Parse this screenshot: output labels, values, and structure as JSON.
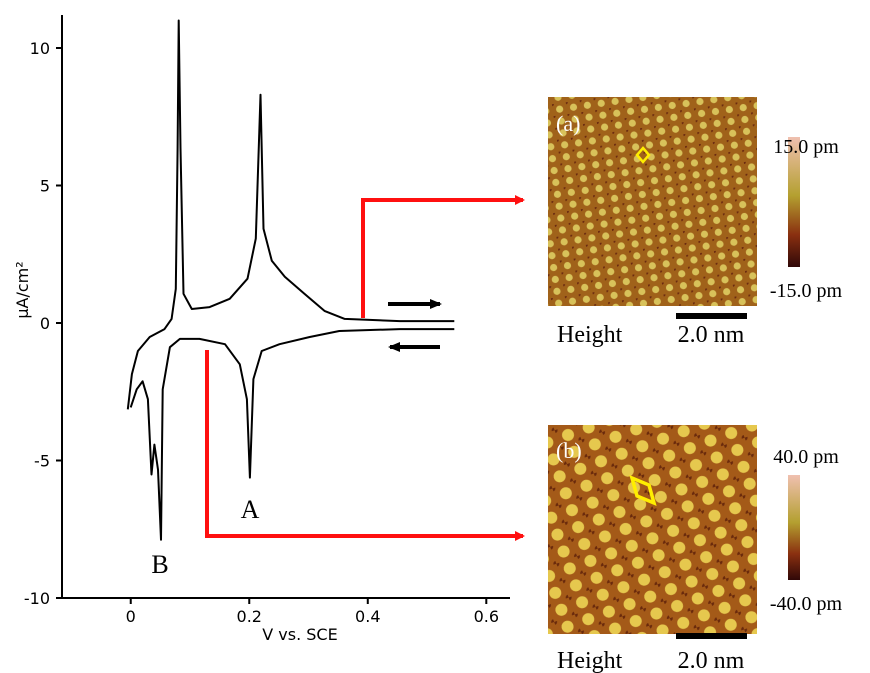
{
  "chart_data": {
    "type": "line",
    "ylabel": "μA/cm²",
    "xlabel": "V vs. SCE",
    "xlim": [
      -0.116,
      0.64
    ],
    "ylim": [
      -10,
      11.2
    ],
    "xticks": [
      0,
      0.2,
      0.4,
      0.6
    ],
    "yticks": [
      10,
      5,
      0,
      -5,
      -10
    ],
    "series": [
      {
        "color": "#000000",
        "x": [
          -0.005,
          0.002,
          0.012,
          0.032,
          0.057,
          0.069,
          0.076,
          0.079,
          0.081,
          0.084,
          0.089,
          0.103,
          0.133,
          0.167,
          0.197,
          0.211,
          0.219,
          0.224,
          0.238,
          0.26,
          0.293,
          0.327,
          0.361,
          0.454,
          0.546
        ],
        "values": [
          -3.14,
          -1.86,
          -1.02,
          -0.51,
          -0.22,
          0.15,
          1.24,
          6.35,
          11.0,
          6.35,
          1.06,
          0.51,
          0.58,
          0.88,
          1.61,
          3.07,
          8.3,
          3.43,
          2.26,
          1.68,
          1.06,
          0.44,
          0.15,
          0.07,
          0.07
        ]
      },
      {
        "color": "#000000",
        "x": [
          0.546,
          0.454,
          0.352,
          0.302,
          0.251,
          0.221,
          0.207,
          0.201,
          0.196,
          0.184,
          0.159,
          0.116,
          0.083,
          0.066,
          0.054,
          0.051,
          0.046,
          0.04,
          0.035,
          0.029,
          0.02,
          0.01,
          0.0
        ],
        "values": [
          -0.22,
          -0.22,
          -0.29,
          -0.51,
          -0.77,
          -1.02,
          -2.04,
          -5.62,
          -2.77,
          -1.5,
          -0.77,
          -0.58,
          -0.58,
          -0.88,
          -2.41,
          -7.88,
          -5.33,
          -4.42,
          -5.51,
          -2.77,
          -2.12,
          -2.41,
          -3.07
        ]
      }
    ],
    "annotations": [
      "A",
      "B"
    ]
  },
  "images": [
    {
      "label": "(a)",
      "scale_max": "15.0 pm",
      "scale_min": "-15.0 pm",
      "channel": "Height",
      "scale_bar": "2.0 nm"
    },
    {
      "label": "(b)",
      "scale_max": "40.0 pm",
      "scale_min": "-40.0 pm",
      "channel": "Height",
      "scale_bar": "2.0 nm"
    }
  ]
}
